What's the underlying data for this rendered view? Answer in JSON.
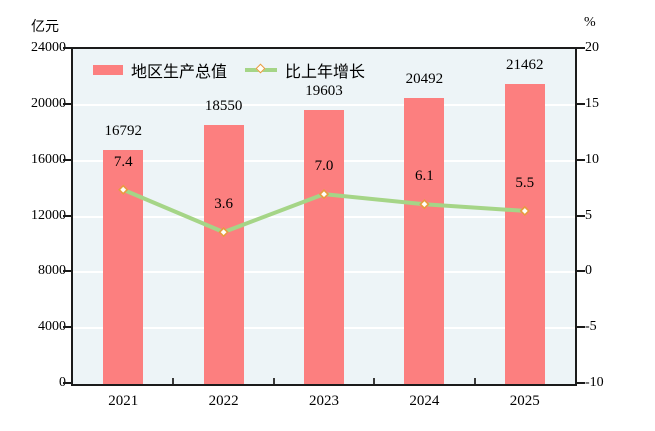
{
  "chart_data": {
    "type": "bar",
    "subtype": "bar-line-combo",
    "categories": [
      "2021",
      "2022",
      "2023",
      "2024",
      "2025"
    ],
    "series": [
      {
        "name": "地区生产总值",
        "type": "bar",
        "axis": "left",
        "values": [
          16792,
          18550,
          19603,
          20492,
          21462
        ],
        "labels": [
          "16792",
          "18550",
          "19603",
          "20492",
          "21462"
        ],
        "color": "#fc7f7f"
      },
      {
        "name": "比上年增长",
        "type": "line",
        "axis": "right",
        "values": [
          7.4,
          3.6,
          7.0,
          6.1,
          5.5
        ],
        "labels": [
          "7.4",
          "3.6",
          "7.0",
          "6.1",
          "5.5"
        ],
        "color": "#a5d587",
        "marker": "diamond",
        "marker_stroke": "#e89b40",
        "marker_fill": "#fffef8"
      }
    ],
    "left_axis": {
      "label": "亿元",
      "min": 0,
      "max": 24000,
      "tick_step": 4000,
      "ticks": [
        "24000",
        "20000",
        "16000",
        "12000",
        "8000",
        "4000",
        "0"
      ]
    },
    "right_axis": {
      "label": "%",
      "min": -10,
      "max": 20,
      "tick_step": 5,
      "ticks": [
        "20",
        "15",
        "10",
        "5",
        "0",
        "-5",
        "-10"
      ]
    },
    "grid": true,
    "legend_position": "top-left-inside",
    "plot_background": "#edf4f7",
    "gridline_color": "#ffffff",
    "border_color": "#1b1b1b"
  }
}
